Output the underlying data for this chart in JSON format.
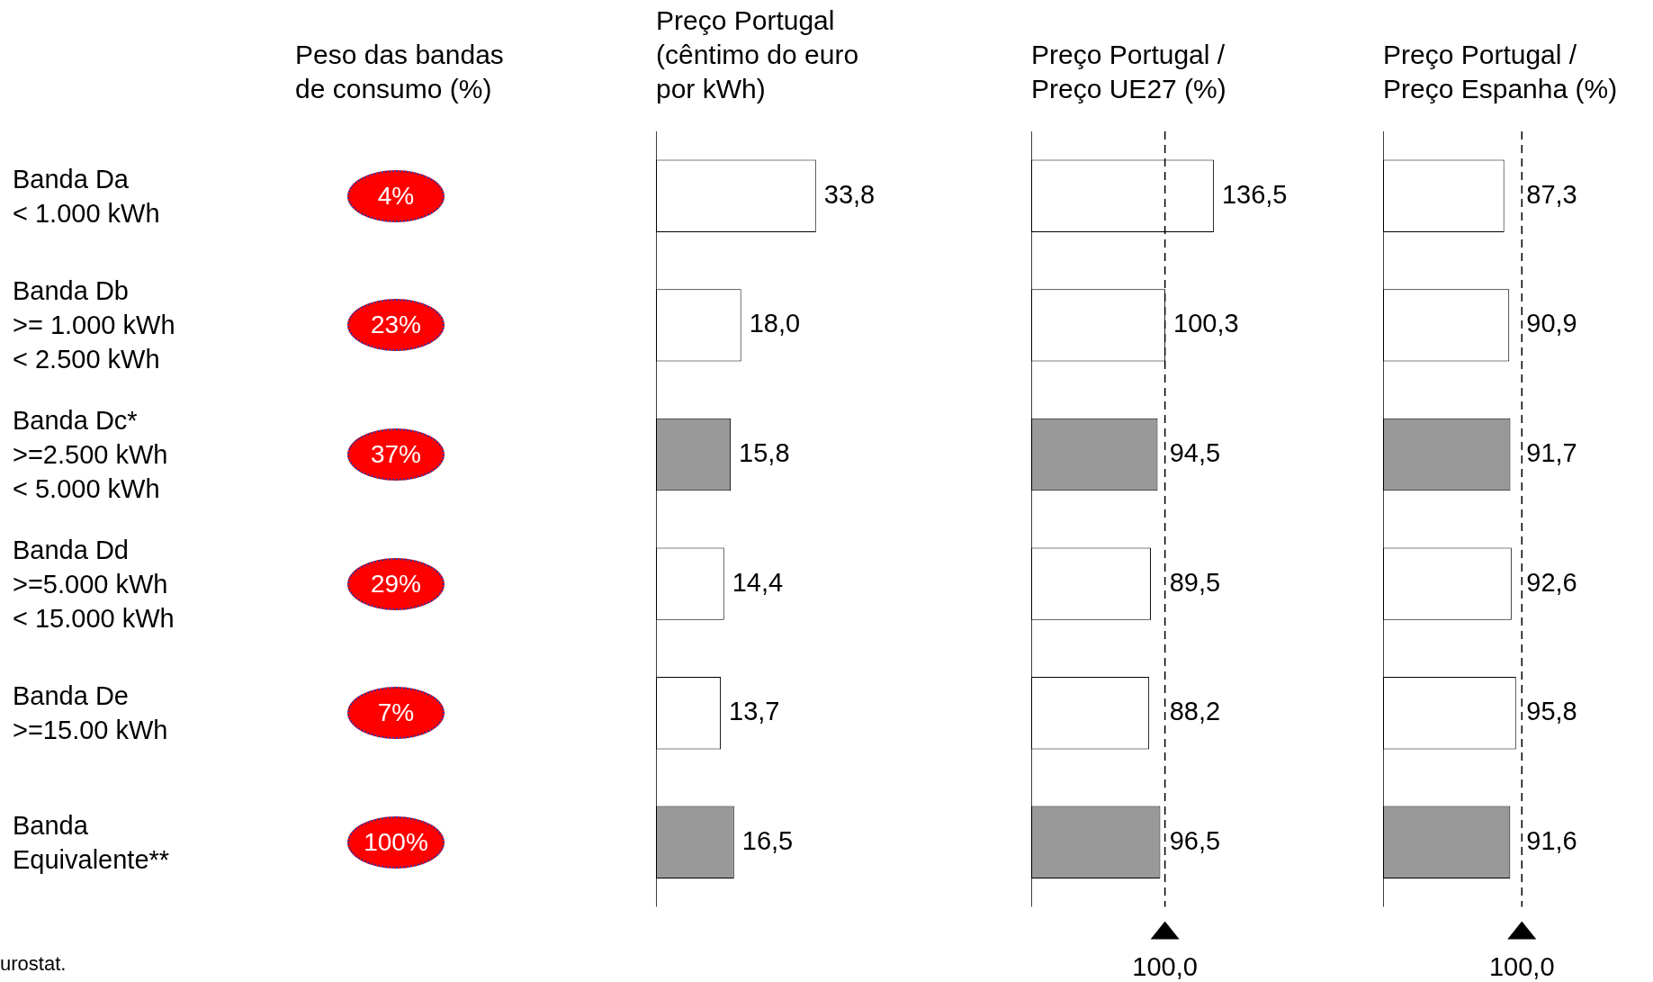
{
  "chart_data": [
    {
      "type": "other",
      "title": "Peso das bandas\nde consumo (%)",
      "categories": [
        "Banda Da\n< 1.000 kWh",
        "Banda Db\n>= 1.000 kWh\n< 2.500 kWh",
        "Banda Dc*\n>=2.500 kWh\n< 5.000 kWh",
        "Banda Dd\n>=5.000 kWh\n< 15.000 kWh",
        "Banda De\n>=15.00 kWh",
        "Banda\nEquivalente**"
      ],
      "value_labels": [
        "4%",
        "23%",
        "37%",
        "29%",
        "7%",
        "100%"
      ],
      "color": "#ff0000",
      "annotations": [
        "urostat."
      ]
    },
    {
      "type": "bar",
      "orientation": "horizontal",
      "title": "Preço Portugal\n(cêntimo do euro\npor kWh)",
      "categories": [
        null,
        null,
        null,
        null,
        null,
        null
      ],
      "values": [
        33.8,
        18.0,
        15.8,
        14.4,
        13.7,
        16.5
      ],
      "value_labels": [
        "33,8",
        "18,0",
        "15,8",
        "14,4",
        "13,7",
        "16,5"
      ],
      "colors": [
        "#ffffff",
        "#ffffff",
        "#999999",
        "#ffffff",
        "#ffffff",
        "#999999"
      ],
      "tick_labels": false
    },
    {
      "type": "bar",
      "orientation": "horizontal",
      "title": "Preço Portugal /\nPreço UE27 (%)",
      "categories": [
        null,
        null,
        null,
        null,
        null,
        null
      ],
      "values": [
        136.5,
        100.3,
        94.5,
        89.5,
        88.2,
        96.5
      ],
      "value_labels": [
        "136,5",
        "100,3",
        "94,5",
        "89,5",
        "88,2",
        "96,5"
      ],
      "colors": [
        "#ffffff",
        "#ffffff",
        "#999999",
        "#ffffff",
        "#ffffff",
        "#999999"
      ],
      "tick_labels": false,
      "ref_lines": [
        {
          "axis": "x",
          "value": 100,
          "label": "100,0",
          "color": "#000000",
          "line_style": "dashed"
        }
      ]
    },
    {
      "type": "bar",
      "orientation": "horizontal",
      "title": "Preço Portugal /\nPreço Espanha (%)",
      "categories": [
        null,
        null,
        null,
        null,
        null,
        null
      ],
      "values": [
        87.3,
        90.9,
        91.7,
        92.6,
        95.8,
        91.6
      ],
      "value_labels": [
        "87,3",
        "90,9",
        "91,7",
        "92,6",
        "95,8",
        "91,6"
      ],
      "colors": [
        "#ffffff",
        "#ffffff",
        "#999999",
        "#ffffff",
        "#ffffff",
        "#999999"
      ],
      "tick_labels": false,
      "ref_lines": [
        {
          "axis": "x",
          "value": 100,
          "label": "100,0",
          "color": "#000000",
          "line_style": "dashed"
        }
      ]
    }
  ]
}
